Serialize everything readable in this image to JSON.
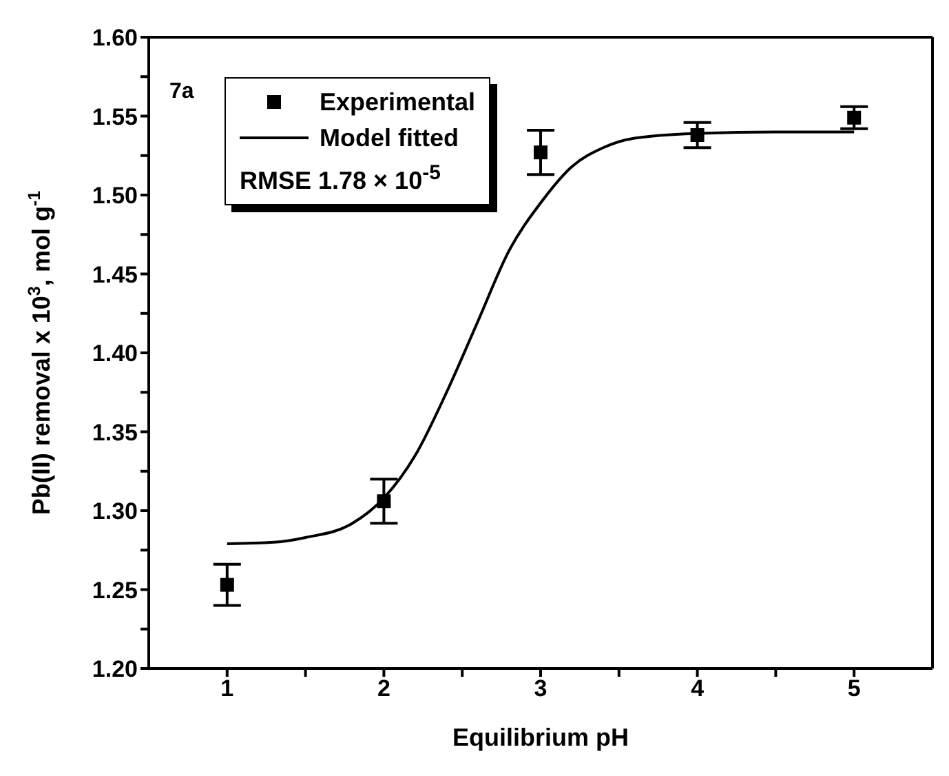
{
  "chart_data": {
    "type": "scatter",
    "xlabel": "Equilibrium pH",
    "ylabel": "Pb(II) removal x 10$^{3}$, mol g$^{-1}$",
    "annotations": [
      "7a",
      "RMSE 1.78 × 10$^{-5}$"
    ],
    "xlim": [
      0.5,
      5.5
    ],
    "xticks": [
      1,
      {
        "value": 1.5,
        "label": null
      },
      2,
      {
        "value": 2.5,
        "label": null
      },
      3,
      {
        "value": 3.5,
        "label": null
      },
      4,
      {
        "value": 4.5,
        "label": null
      },
      5
    ],
    "ylim": [
      1.2,
      1.6
    ],
    "yticks": [
      {
        "value": 1.2,
        "label": "1.20"
      },
      {
        "value": 1.225,
        "label": null
      },
      {
        "value": 1.25,
        "label": "1.25"
      },
      {
        "value": 1.275,
        "label": null
      },
      {
        "value": 1.3,
        "label": "1.30"
      },
      {
        "value": 1.325,
        "label": null
      },
      {
        "value": 1.35,
        "label": "1.35"
      },
      {
        "value": 1.375,
        "label": null
      },
      {
        "value": 1.4,
        "label": "1.40"
      },
      {
        "value": 1.425,
        "label": null
      },
      {
        "value": 1.45,
        "label": "1.45"
      },
      {
        "value": 1.475,
        "label": null
      },
      {
        "value": 1.5,
        "label": "1.50"
      },
      {
        "value": 1.525,
        "label": null
      },
      {
        "value": 1.55,
        "label": "1.55"
      },
      {
        "value": 1.575,
        "label": null
      },
      {
        "value": 1.6,
        "label": "1.60"
      }
    ],
    "legend": "top left",
    "series": [
      {
        "name": "Experimental",
        "color": "#000000",
        "marker": "square",
        "x": [
          1,
          2,
          3,
          4,
          5
        ],
        "values": [
          1.253,
          1.306,
          1.527,
          1.538,
          1.549
        ],
        "errors": [
          0.013,
          0.014,
          0.014,
          0.008,
          0.007
        ]
      },
      {
        "name": "Model fitted",
        "type": "line",
        "color": "#000000",
        "marker": "none",
        "line_style": "solid",
        "x": [
          1,
          1.3,
          1.5,
          1.8,
          2,
          2.2,
          2.4,
          2.6,
          2.8,
          3,
          3.2,
          3.4,
          3.6,
          4,
          4.5,
          5
        ],
        "values": [
          1.279,
          1.28,
          1.283,
          1.292,
          1.308,
          1.335,
          1.375,
          1.42,
          1.465,
          1.495,
          1.518,
          1.53,
          1.536,
          1.539,
          1.54,
          1.54
        ]
      }
    ]
  }
}
